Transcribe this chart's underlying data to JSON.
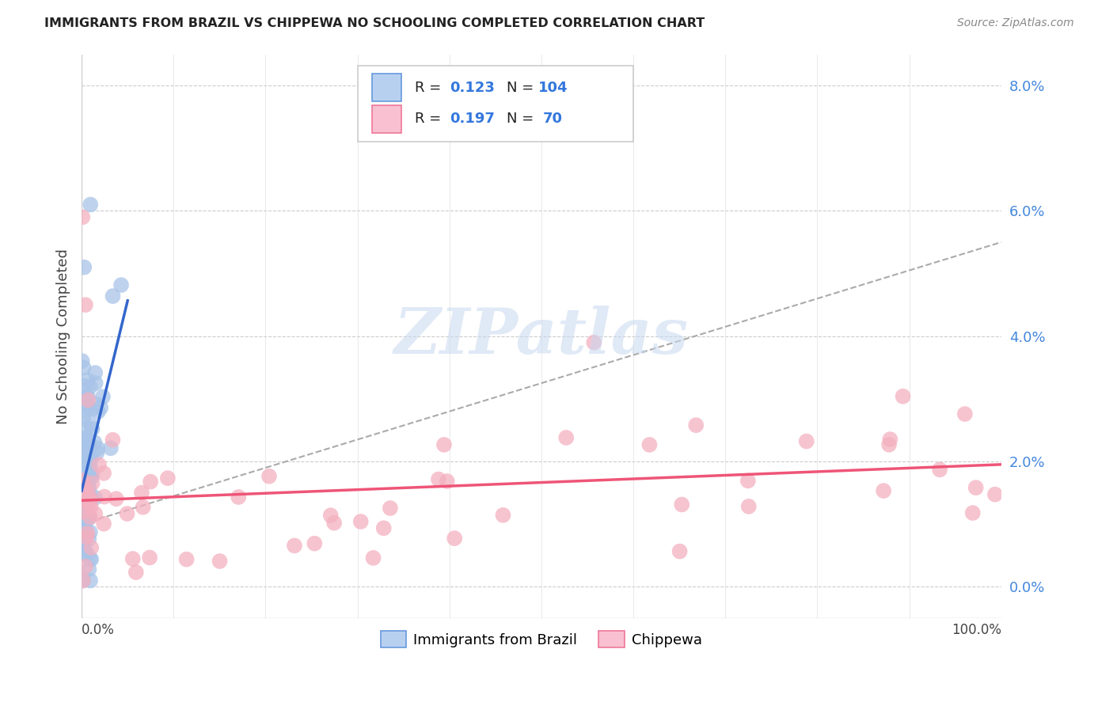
{
  "title": "IMMIGRANTS FROM BRAZIL VS CHIPPEWA NO SCHOOLING COMPLETED CORRELATION CHART",
  "source": "Source: ZipAtlas.com",
  "ylabel": "No Schooling Completed",
  "right_ytick_vals": [
    0.0,
    0.02,
    0.04,
    0.06,
    0.08
  ],
  "brazil_scatter_color": "#a8c4e8",
  "chippewa_scatter_color": "#f4b0c0",
  "brazil_line_color": "#3366cc",
  "chippewa_line_color": "#ee5577",
  "trendline_color": "#aaaaaa",
  "watermark": "ZIPatlas",
  "xlim": [
    0.0,
    1.0
  ],
  "ylim": [
    -0.005,
    0.085
  ],
  "brazil_R": 0.123,
  "brazil_N": 104,
  "chippewa_R": 0.197,
  "chippewa_N": 70
}
